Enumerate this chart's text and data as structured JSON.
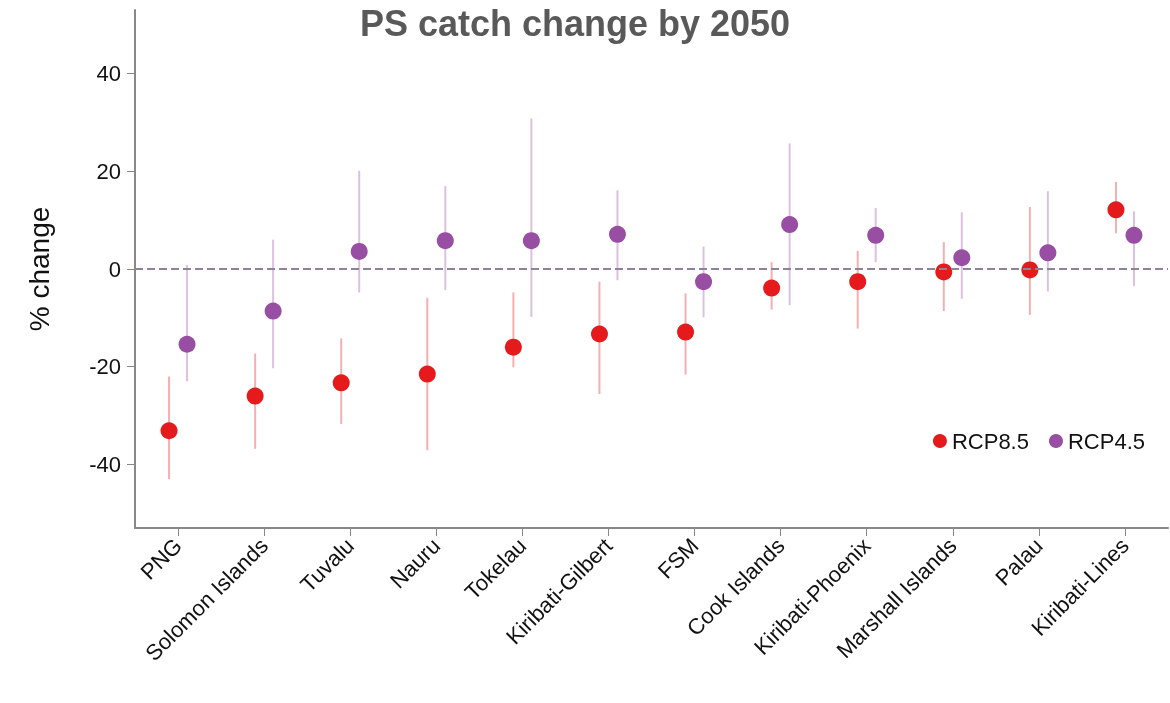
{
  "chart_data": {
    "type": "scatter",
    "title": "PS catch change by 2050",
    "ylabel": "% change",
    "categories": [
      "PNG",
      "Solomon Islands",
      "Tuvalu",
      "Nauru",
      "Tokelau",
      "Kiribati-Gilbert",
      "FSM",
      "Cook Islands",
      "Kiribati-Phoenix",
      "Marshall Islands",
      "Palau",
      "Kiribati-Lines"
    ],
    "series": [
      {
        "name": "RCP8.5",
        "color": "#e41a1c",
        "values": [
          -33.1,
          -26.0,
          -23.3,
          -21.5,
          -16.0,
          -13.3,
          -12.9,
          -3.9,
          -2.6,
          -0.6,
          -0.2,
          12.1
        ],
        "errors": [
          [
            -43.0,
            -22.0
          ],
          [
            -36.8,
            -17.3
          ],
          [
            -31.7,
            -14.2
          ],
          [
            -37.1,
            -5.9
          ],
          [
            -20.1,
            -4.8
          ],
          [
            -25.6,
            -2.6
          ],
          [
            -21.6,
            -5.0
          ],
          [
            -8.3,
            1.4
          ],
          [
            -12.2,
            3.7
          ],
          [
            -8.6,
            5.5
          ],
          [
            -9.4,
            12.7
          ],
          [
            7.3,
            17.8
          ]
        ]
      },
      {
        "name": "RCP4.5",
        "color": "#984ea3",
        "values": [
          -15.4,
          -8.6,
          3.6,
          5.8,
          5.8,
          7.1,
          -2.6,
          9.1,
          6.9,
          2.3,
          3.3,
          6.9
        ],
        "errors": [
          [
            -23.0,
            0.8
          ],
          [
            -20.3,
            6.0
          ],
          [
            -4.8,
            20.1
          ],
          [
            -4.3,
            17.0
          ],
          [
            -9.8,
            30.8
          ],
          [
            -2.3,
            16.1
          ],
          [
            -9.9,
            4.6
          ],
          [
            -7.4,
            25.7
          ],
          [
            1.4,
            12.5
          ],
          [
            -6.1,
            11.6
          ],
          [
            -4.6,
            15.9
          ],
          [
            -3.5,
            11.8
          ]
        ]
      }
    ],
    "ylim": [
      -53,
      53
    ],
    "yticks": [
      -40,
      -20,
      0,
      20,
      40
    ],
    "ref_lines": [
      {
        "axis": "y",
        "value": 0,
        "color": "#8c8599",
        "line_style": "dashed"
      }
    ],
    "legend": "bottom right",
    "marker": "circle",
    "grid": false
  }
}
